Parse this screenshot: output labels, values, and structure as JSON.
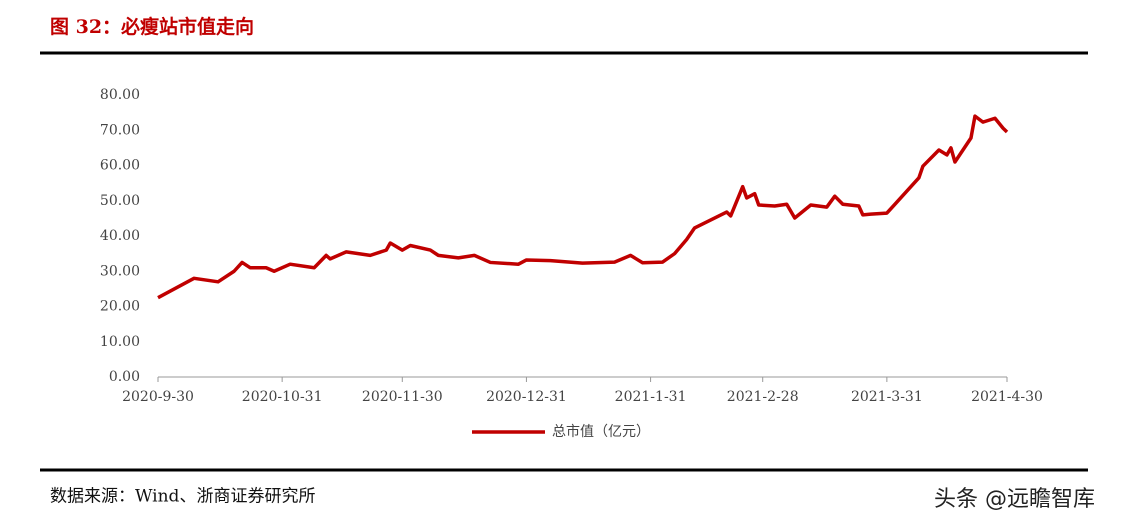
{
  "chart_data": {
    "type": "line",
    "title": "图 32：必瘦站市值走向",
    "source": "数据来源：Wind、浙商证券研究所",
    "watermark": "头条 @远瞻智库",
    "x": [
      "2020-09-30",
      "2020-10-09",
      "2020-10-15",
      "2020-10-19",
      "2020-10-21",
      "2020-10-23",
      "2020-10-27",
      "2020-10-29",
      "2020-11-02",
      "2020-11-08",
      "2020-11-11",
      "2020-11-12",
      "2020-11-16",
      "2020-11-22",
      "2020-11-26",
      "2020-11-27",
      "2020-11-30",
      "2020-12-02",
      "2020-12-07",
      "2020-12-09",
      "2020-12-14",
      "2020-12-18",
      "2020-12-22",
      "2020-12-29",
      "2020-12-31",
      "2021-01-06",
      "2021-01-14",
      "2021-01-22",
      "2021-01-26",
      "2021-01-29",
      "2021-02-03",
      "2021-02-06",
      "2021-02-09",
      "2021-02-11",
      "2021-02-19",
      "2021-02-20",
      "2021-02-23",
      "2021-02-24",
      "2021-02-26",
      "2021-02-27",
      "2021-03-03",
      "2021-03-06",
      "2021-03-08",
      "2021-03-12",
      "2021-03-16",
      "2021-03-18",
      "2021-03-20",
      "2021-03-24",
      "2021-03-25",
      "2021-03-27",
      "2021-03-31",
      "2021-04-02",
      "2021-04-08",
      "2021-04-09",
      "2021-04-13",
      "2021-04-15",
      "2021-04-16",
      "2021-04-17",
      "2021-04-21",
      "2021-04-22",
      "2021-04-24",
      "2021-04-27",
      "2021-04-29",
      "2021-04-30"
    ],
    "series": [
      {
        "name": "总市值（亿元）",
        "color": "#c00000",
        "values": [
          22.5,
          28,
          27,
          30,
          32.5,
          31,
          31,
          30,
          32,
          31,
          34.5,
          33.5,
          35.5,
          34.5,
          36,
          38,
          36,
          37.3,
          36,
          34.5,
          33.8,
          34.5,
          32.5,
          32,
          33.2,
          33,
          32.3,
          32.6,
          34.5,
          32.4,
          32.6,
          35,
          39,
          42.3,
          46.8,
          45.7,
          54,
          50.8,
          52,
          48.8,
          48.5,
          49,
          45.1,
          48.8,
          48.2,
          51.3,
          49,
          48.5,
          46,
          46.2,
          46.5,
          49,
          56.5,
          59.8,
          64.4,
          63,
          65,
          61,
          67.8,
          74,
          72.3,
          73.4,
          70.6,
          69.5
        ]
      }
    ],
    "xlim": [
      "2020-09-30",
      "2021-04-30"
    ],
    "xticks": [
      {
        "value": "2020-09-30",
        "label": "2020-9-30"
      },
      {
        "value": "2020-10-31",
        "label": "2020-10-31"
      },
      {
        "value": "2020-11-30",
        "label": "2020-11-30"
      },
      {
        "value": "2020-12-31",
        "label": "2020-12-31"
      },
      {
        "value": "2021-01-31",
        "label": "2021-1-31"
      },
      {
        "value": "2021-02-28",
        "label": "2021-2-28"
      },
      {
        "value": "2021-03-31",
        "label": "2021-3-31"
      },
      {
        "value": "2021-04-30",
        "label": "2021-4-30"
      }
    ],
    "ylim": [
      0,
      80
    ],
    "yticks": [
      {
        "value": 0,
        "label": "0.00"
      },
      {
        "value": 10,
        "label": "10.00"
      },
      {
        "value": 20,
        "label": "20.00"
      },
      {
        "value": 30,
        "label": "30.00"
      },
      {
        "value": 40,
        "label": "40.00"
      },
      {
        "value": 50,
        "label": "50.00"
      },
      {
        "value": 60,
        "label": "60.00"
      },
      {
        "value": 70,
        "label": "70.00"
      },
      {
        "value": 80,
        "label": "80.00"
      }
    ],
    "grid": false
  }
}
